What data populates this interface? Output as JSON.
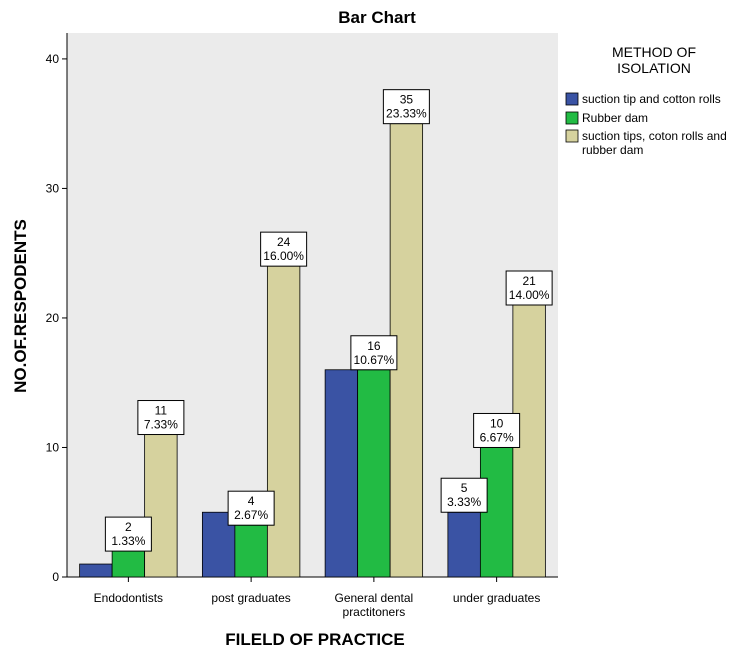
{
  "chart_data": {
    "type": "bar",
    "title": "Bar Chart",
    "xlabel": "FILELD OF PRACTICE",
    "ylabel": "NO.OF.RESPODENTS",
    "ylim": [
      0,
      42
    ],
    "yticks": [
      0,
      10,
      20,
      30,
      40
    ],
    "categories": [
      "Endodontists",
      "post graduates",
      "General dental practitoners",
      "under graduates"
    ],
    "category_lines": [
      [
        "Endodontists"
      ],
      [
        "post graduates"
      ],
      [
        "General dental",
        "practitoners"
      ],
      [
        "under graduates"
      ]
    ],
    "series": [
      {
        "name": "suction tip and cotton rolls",
        "color": "#3a53a4",
        "values": [
          1,
          5,
          16,
          5
        ]
      },
      {
        "name": "Rubber dam",
        "color": "#22bb44",
        "values": [
          2,
          4,
          16,
          10
        ]
      },
      {
        "name": "suction tips, coton rolls and rubber dam",
        "color": "#d6d29e",
        "values": [
          11,
          24,
          35,
          21
        ]
      }
    ],
    "data_labels": [
      {
        "category": 0,
        "series": 1,
        "count": "2",
        "percent": "1.33%"
      },
      {
        "category": 0,
        "series": 2,
        "count": "11",
        "percent": "7.33%"
      },
      {
        "category": 1,
        "series": 1,
        "count": "4",
        "percent": "2.67%"
      },
      {
        "category": 1,
        "series": 2,
        "count": "24",
        "percent": "16.00%"
      },
      {
        "category": 2,
        "series": 1,
        "count": "16",
        "percent": "10.67%"
      },
      {
        "category": 2,
        "series": 2,
        "count": "35",
        "percent": "23.33%"
      },
      {
        "category": 3,
        "series": 0,
        "count": "5",
        "percent": "3.33%"
      },
      {
        "category": 3,
        "series": 1,
        "count": "10",
        "percent": "6.67%"
      },
      {
        "category": 3,
        "series": 2,
        "count": "21",
        "percent": "14.00%"
      }
    ],
    "legend": {
      "title_lines": [
        "METHOD OF",
        "ISOLATION"
      ],
      "entries": [
        {
          "lines": [
            "suction tip and cotton rolls"
          ],
          "color": "#3a53a4"
        },
        {
          "lines": [
            "Rubber dam"
          ],
          "color": "#22bb44"
        },
        {
          "lines": [
            "suction tips, coton rolls and",
            "rubber dam"
          ],
          "color": "#d6d29e"
        }
      ],
      "position": "right"
    },
    "plot_background": "#ebebeb",
    "grid": false
  }
}
